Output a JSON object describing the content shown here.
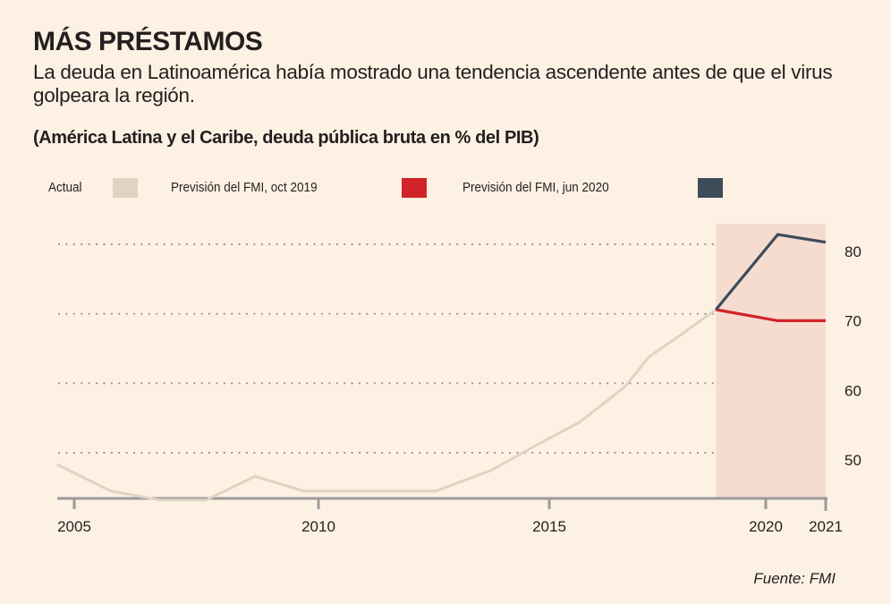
{
  "header": {
    "title": "MÁS PRÉSTAMOS",
    "subtitle": "La deuda en Latinoamérica había mostrado una tendencia ascendente antes de que el virus golpeara la región.",
    "unit_label": "(América Latina y el Caribe, deuda pública bruta en % del PIB)"
  },
  "legend": [
    {
      "label": "Actual",
      "color": "#e0d3c4"
    },
    {
      "label": "Previsión del FMI, oct 2019",
      "color": "#d2232a"
    },
    {
      "label": "Previsión del FMI, jun 2020",
      "color": "#3e4c59"
    }
  ],
  "source": "Fuente: FMI",
  "chart_data": {
    "type": "line",
    "title": "MÁS PRÉSTAMOS",
    "subtitle": "(América Latina y el Caribe, deuda pública bruta en % del PIB)",
    "xlabel": "",
    "ylabel": "% del PIB",
    "x_ticks": [
      2005,
      2010,
      2015,
      2020,
      2021
    ],
    "y_ticks": [
      50,
      60,
      70,
      80
    ],
    "ylim": [
      43.5,
      83
    ],
    "xlim": [
      2004.65,
      2021
    ],
    "grid": "horizontal dotted",
    "y_axis_side": "right",
    "legend_position": "top",
    "forecast_band": {
      "from": 2018.85,
      "to": 2021,
      "color": "#f6dccf"
    },
    "series": [
      {
        "name": "Actual",
        "color": "#e0d3c4",
        "points": [
          [
            2004.65,
            48.3
          ],
          [
            2005.75,
            44.5
          ],
          [
            2006.75,
            43.2
          ],
          [
            2007.7,
            43.2
          ],
          [
            2008.7,
            46.6
          ],
          [
            2009.7,
            44.5
          ],
          [
            2010.85,
            44.5
          ],
          [
            2012.55,
            44.5
          ],
          [
            2013.75,
            47.5
          ],
          [
            2014.75,
            51.2
          ],
          [
            2015.7,
            54.4
          ],
          [
            2016.75,
            59.5
          ],
          [
            2017.3,
            63.8
          ],
          [
            2018.0,
            66.8
          ],
          [
            2018.85,
            70.6
          ]
        ]
      },
      {
        "name": "Previsión del FMI, oct 2019",
        "color": "#d2232a",
        "points": [
          [
            2018.85,
            70.6
          ],
          [
            2020.2,
            69.0
          ],
          [
            2021,
            69.0
          ]
        ]
      },
      {
        "name": "Previsión del FMI, jun 2020",
        "color": "#3e4c59",
        "points": [
          [
            2018.85,
            70.6
          ],
          [
            2020.2,
            81.4
          ],
          [
            2021,
            80.3
          ]
        ]
      }
    ]
  }
}
